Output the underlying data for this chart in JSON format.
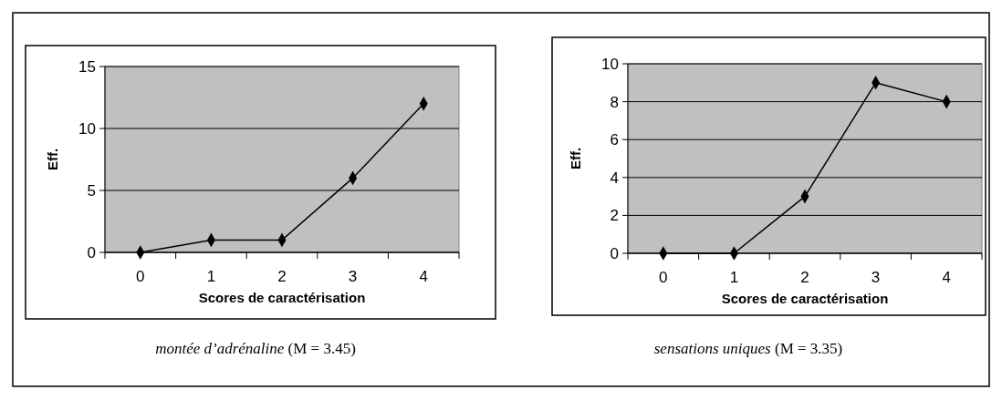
{
  "chart_data": [
    {
      "type": "line",
      "categories": [
        "0",
        "1",
        "2",
        "3",
        "4"
      ],
      "series": [
        {
          "color": "#000000",
          "values": [
            0,
            1,
            1,
            6,
            12
          ]
        }
      ],
      "xlabel": "Scores de caractérisation",
      "ylabel": "Eff.",
      "ylim": [
        0,
        15
      ],
      "yticks": [
        0,
        5,
        10,
        15
      ],
      "grid": "y",
      "marker": "diamond",
      "line_style": "solid",
      "annotations": [
        "montée d’adrénaline (M = 3.45)"
      ]
    },
    {
      "type": "line",
      "categories": [
        "0",
        "1",
        "2",
        "3",
        "4"
      ],
      "series": [
        {
          "color": "#000000",
          "values": [
            0,
            0,
            3,
            9,
            8
          ]
        }
      ],
      "xlabel": "Scores de caractérisation",
      "ylabel": "Eff.",
      "ylim": [
        0,
        10
      ],
      "yticks": [
        0,
        2,
        4,
        6,
        8,
        10
      ],
      "grid": "y",
      "marker": "diamond",
      "line_style": "solid",
      "annotations": [
        "sensations uniques (M = 3.35)"
      ]
    }
  ]
}
